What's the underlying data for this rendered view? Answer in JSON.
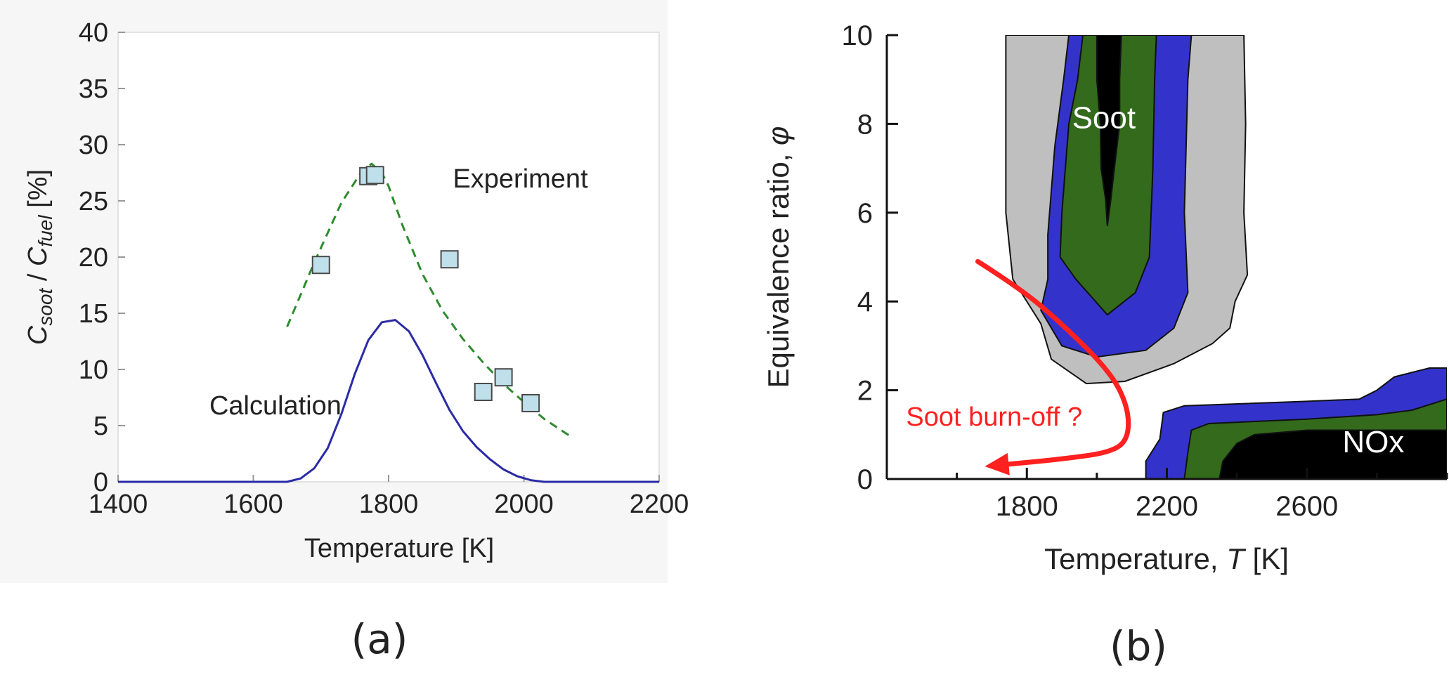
{
  "chart_data": [
    {
      "type": "line",
      "title": "",
      "panel_label": "(a)",
      "xlabel": "Temperature [K]",
      "ylabel": "C_soot / C_fuel [%]",
      "ylabel_parts": {
        "c1": "C",
        "sub1": "soot",
        "slash": " / ",
        "c2": "C",
        "sub2": "fuel",
        "unit": " [%]"
      },
      "xlim": [
        1400,
        2200
      ],
      "ylim": [
        0,
        40
      ],
      "xticks": [
        1400,
        1600,
        1800,
        2000,
        2200
      ],
      "yticks": [
        0,
        5,
        10,
        15,
        20,
        25,
        30,
        35,
        40
      ],
      "grid": false,
      "series": [
        {
          "name": "Experiment",
          "kind": "dashed-line",
          "color": "#2e8b2e",
          "x": [
            1650,
            1690,
            1730,
            1760,
            1775,
            1790,
            1800,
            1820,
            1850,
            1880,
            1910,
            1940,
            1970,
            2000,
            2030,
            2060,
            2070
          ],
          "y": [
            13.8,
            19.5,
            24.8,
            27.6,
            28.3,
            27.5,
            26.3,
            22.9,
            18.5,
            15.2,
            12.7,
            10.6,
            8.7,
            7.1,
            5.6,
            4.4,
            4.0
          ]
        },
        {
          "name": "Calculation",
          "kind": "solid-line",
          "color": "#2b2ba6",
          "x": [
            1400,
            1650,
            1670,
            1690,
            1710,
            1730,
            1750,
            1770,
            1790,
            1810,
            1830,
            1850,
            1870,
            1890,
            1910,
            1930,
            1950,
            1970,
            1990,
            2010,
            2030,
            2200
          ],
          "y": [
            0,
            0,
            0.3,
            1.2,
            3.0,
            6.0,
            9.6,
            12.6,
            14.2,
            14.4,
            13.4,
            11.3,
            8.8,
            6.4,
            4.5,
            3.1,
            2.0,
            1.1,
            0.5,
            0.15,
            0,
            0
          ]
        },
        {
          "name": "Experiment data",
          "kind": "square-markers",
          "color": "#bfe0ea",
          "x": [
            1700,
            1770,
            1780,
            1890,
            1940,
            1970,
            2010
          ],
          "y": [
            19.3,
            27.2,
            27.3,
            19.8,
            8.0,
            9.3,
            7.0
          ]
        }
      ],
      "annotations": [
        {
          "text": "Experiment",
          "x": 1895,
          "y": 26.2,
          "color": "#2e8b2e"
        },
        {
          "text": "Calculation",
          "x": 1535,
          "y": 6.0,
          "color": "#2b2ba6"
        }
      ]
    },
    {
      "type": "contour",
      "title": "",
      "panel_label": "(b)",
      "xlabel": "Temperature, T [K]",
      "xlabel_parts": {
        "pre": "Temperature, ",
        "var": "T",
        "post": " [K]"
      },
      "ylabel": "Equivalence ratio, φ",
      "ylabel_parts": {
        "pre": "Equivalence ratio, ",
        "var": "φ"
      },
      "xlim": [
        1400,
        3000
      ],
      "ylim": [
        0,
        10
      ],
      "xticks": [
        1800,
        2200,
        2600
      ],
      "yticks": [
        0,
        2,
        4,
        6,
        8,
        10
      ],
      "grid": false,
      "levels": [
        "gray",
        "blue",
        "green",
        "black"
      ],
      "level_colors": {
        "gray": "#bfbfbf",
        "blue": "#3333cc",
        "green": "#336a1c",
        "black": "#000000"
      },
      "regions": [
        {
          "name": "Soot",
          "label": "Soot",
          "label_at": [
            2020,
            7.9
          ],
          "contours": {
            "gray": [
              [
                1740,
                10
              ],
              [
                1740,
                6.0
              ],
              [
                1760,
                4.5
              ],
              [
                1840,
                3.5
              ],
              [
                1870,
                2.7
              ],
              [
                1970,
                2.15
              ],
              [
                2080,
                2.2
              ],
              [
                2220,
                2.6
              ],
              [
                2330,
                3.05
              ],
              [
                2380,
                3.4
              ],
              [
                2395,
                4.0
              ],
              [
                2430,
                4.6
              ],
              [
                2420,
                6.0
              ],
              [
                2425,
                8.0
              ],
              [
                2420,
                10
              ]
            ],
            "blue": [
              [
                1920,
                10
              ],
              [
                1905,
                9.0
              ],
              [
                1880,
                7.5
              ],
              [
                1860,
                5.5
              ],
              [
                1860,
                4.5
              ],
              [
                1840,
                3.8
              ],
              [
                1900,
                3.0
              ],
              [
                2000,
                2.75
              ],
              [
                2140,
                2.9
              ],
              [
                2220,
                3.4
              ],
              [
                2260,
                4.2
              ],
              [
                2250,
                6.0
              ],
              [
                2260,
                9.0
              ],
              [
                2270,
                10
              ]
            ],
            "green": [
              [
                1960,
                10
              ],
              [
                1945,
                9.0
              ],
              [
                1920,
                8.0
              ],
              [
                1900,
                6.0
              ],
              [
                1895,
                5.0
              ],
              [
                1940,
                4.5
              ],
              [
                2030,
                3.7
              ],
              [
                2110,
                4.2
              ],
              [
                2150,
                5.0
              ],
              [
                2160,
                7.0
              ],
              [
                2165,
                9.0
              ],
              [
                2170,
                10
              ]
            ],
            "black": [
              [
                2000,
                10
              ],
              [
                2000,
                9.0
              ],
              [
                2010,
                8.0
              ],
              [
                2012,
                7.0
              ],
              [
                2025,
                6.3
              ],
              [
                2030,
                5.7
              ],
              [
                2040,
                6.3
              ],
              [
                2050,
                7.0
              ],
              [
                2065,
                8.0
              ],
              [
                2065,
                9.0
              ],
              [
                2070,
                10
              ]
            ]
          }
        },
        {
          "name": "NOx",
          "label": "NOx",
          "label_at": [
            2790,
            0.6
          ],
          "contours": {
            "gray": [],
            "blue": [
              [
                2140,
                0
              ],
              [
                2140,
                0.4
              ],
              [
                2180,
                0.9
              ],
              [
                2190,
                1.5
              ],
              [
                2250,
                1.65
              ],
              [
                2600,
                1.75
              ],
              [
                2750,
                1.8
              ],
              [
                2800,
                2.0
              ],
              [
                2850,
                2.3
              ],
              [
                2950,
                2.5
              ],
              [
                3000,
                2.5
              ],
              [
                3000,
                0
              ]
            ],
            "green": [
              [
                2250,
                0
              ],
              [
                2260,
                0.6
              ],
              [
                2270,
                1.1
              ],
              [
                2320,
                1.25
              ],
              [
                2600,
                1.35
              ],
              [
                2800,
                1.45
              ],
              [
                2900,
                1.55
              ],
              [
                3000,
                1.8
              ],
              [
                3000,
                0
              ]
            ],
            "black": [
              [
                2350,
                0
              ],
              [
                2360,
                0.4
              ],
              [
                2400,
                0.8
              ],
              [
                2450,
                1.0
              ],
              [
                2600,
                1.1
              ],
              [
                3000,
                1.1
              ],
              [
                3000,
                0
              ]
            ]
          }
        }
      ],
      "arrow": {
        "label": "Soot burn-off ?",
        "color": "#ff2020",
        "path": [
          [
            1660,
            4.9
          ],
          [
            1780,
            4.3
          ],
          [
            1900,
            3.5
          ],
          [
            2040,
            2.4
          ],
          [
            2090,
            1.6
          ],
          [
            2090,
            0.9
          ],
          [
            2040,
            0.6
          ],
          [
            1900,
            0.45
          ],
          [
            1770,
            0.35
          ],
          [
            1700,
            0.3
          ]
        ],
        "label_at": [
          1455,
          1.2
        ]
      }
    }
  ]
}
